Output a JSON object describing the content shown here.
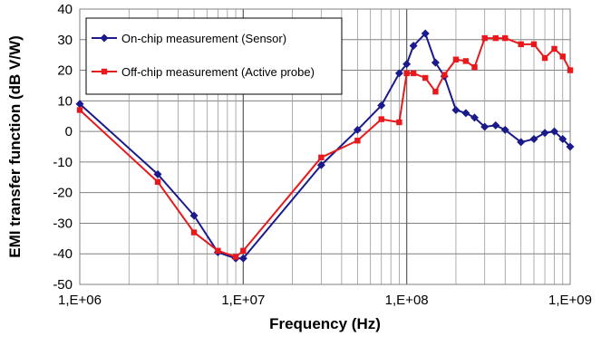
{
  "chart_data": {
    "type": "line",
    "title": "",
    "xlabel": "Frequency (Hz)",
    "ylabel": "EMI transfer function (dB V/W)",
    "x_scale": "log",
    "xlim": [
      1000000,
      1000000000
    ],
    "ylim": [
      -50,
      40
    ],
    "y_ticks": [
      -50,
      -40,
      -30,
      -20,
      -10,
      0,
      10,
      20,
      30,
      40
    ],
    "x_ticks": [
      1000000,
      10000000,
      100000000,
      1000000000
    ],
    "x_tick_labels": [
      "1,E+06",
      "1,E+07",
      "1,E+08",
      "1,E+09"
    ],
    "grid": true,
    "legend": {
      "position": "top-left"
    },
    "series": [
      {
        "name": "On-chip measurement (Sensor)",
        "color": "#1a1a8c",
        "marker": "diamond",
        "x": [
          1000000,
          3000000,
          5000000,
          7000000,
          9000000,
          10000000,
          30000000,
          50000000,
          70000000,
          90000000,
          100000000,
          110000000,
          130000000,
          150000000,
          170000000,
          200000000,
          230000000,
          260000000,
          300000000,
          350000000,
          400000000,
          500000000,
          600000000,
          700000000,
          800000000,
          900000000,
          1000000000
        ],
        "y": [
          9,
          -14,
          -27.5,
          -39.5,
          -41.5,
          -41.5,
          -11,
          0.5,
          8.5,
          19,
          22,
          28,
          32,
          22.5,
          18,
          7,
          6,
          4.5,
          1.5,
          2,
          0.5,
          -3.5,
          -2.5,
          -0.5,
          0,
          -2.5,
          -5
        ]
      },
      {
        "name": "Off-chip measurement (Active probe)",
        "color": "#e8191c",
        "marker": "square",
        "x": [
          1000000,
          3000000,
          5000000,
          7000000,
          9000000,
          10000000,
          30000000,
          50000000,
          70000000,
          90000000,
          100000000,
          110000000,
          130000000,
          150000000,
          170000000,
          200000000,
          230000000,
          260000000,
          300000000,
          350000000,
          400000000,
          500000000,
          600000000,
          700000000,
          800000000,
          900000000,
          1000000000
        ],
        "y": [
          7,
          -16.5,
          -33,
          -39,
          -41,
          -39,
          -8.5,
          -3,
          4,
          3,
          19,
          19,
          17.5,
          13,
          18.5,
          23.5,
          23,
          21,
          30.5,
          30.5,
          30.5,
          28.5,
          28.5,
          24,
          27,
          24.5,
          20
        ]
      }
    ]
  }
}
